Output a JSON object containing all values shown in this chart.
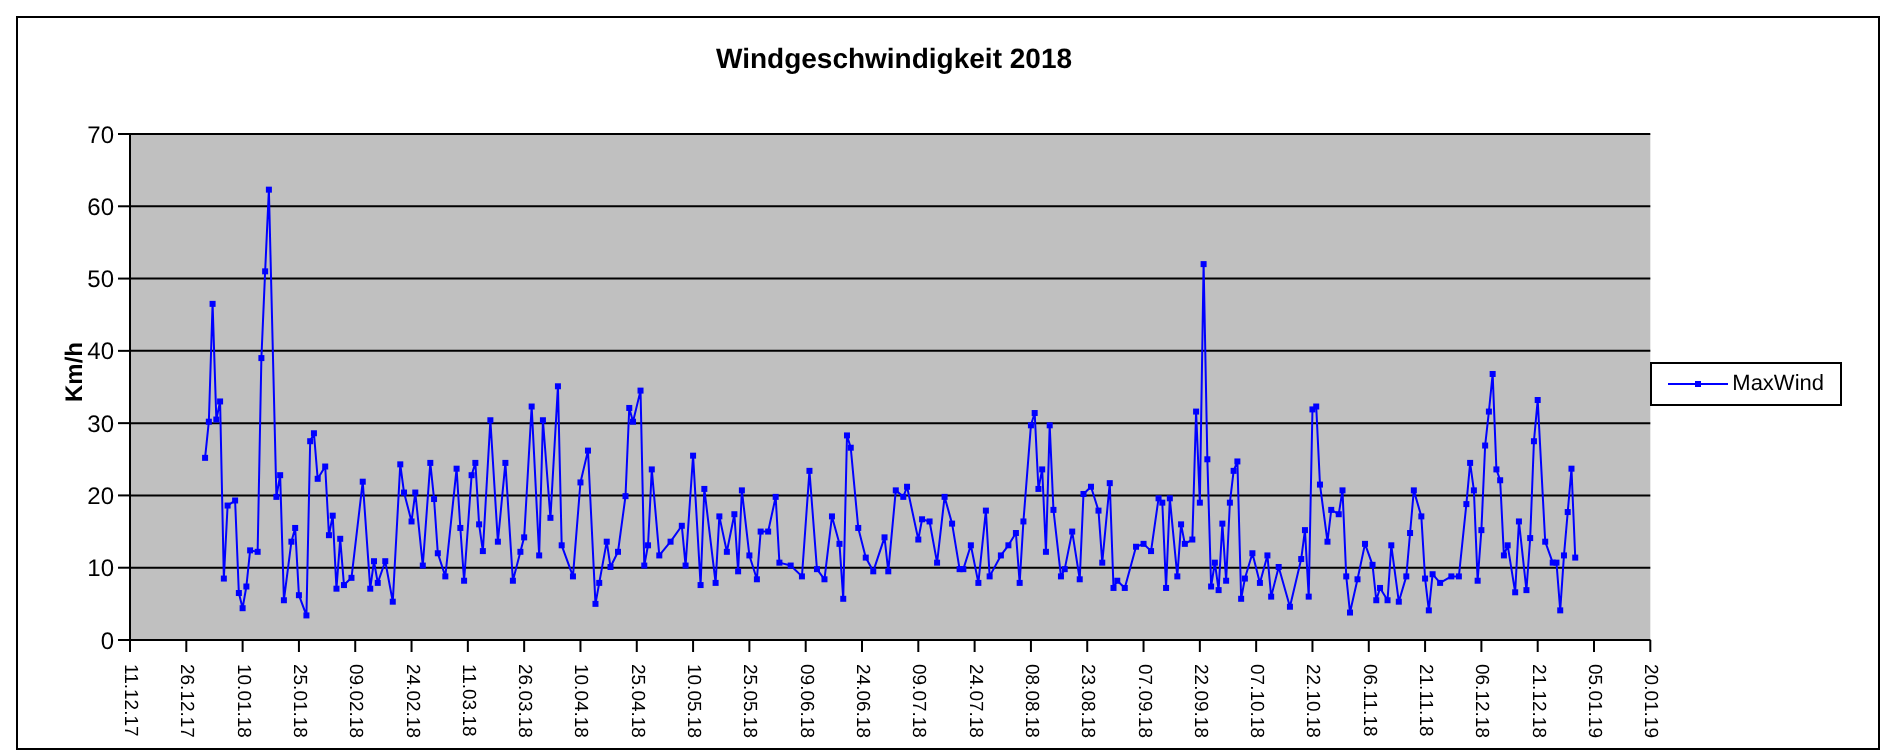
{
  "chart_data": {
    "type": "line",
    "title": "Windgeschwindigkeit 2018",
    "ylabel": "Km/h",
    "x": [
      "2017-12-31",
      "2018-01-01",
      "2018-01-02",
      "2018-01-03",
      "2018-01-04",
      "2018-01-05",
      "2018-01-06",
      "2018-01-08",
      "2018-01-09",
      "2018-01-10",
      "2018-01-11",
      "2018-01-12",
      "2018-01-14",
      "2018-01-15",
      "2018-01-16",
      "2018-01-17",
      "2018-01-19",
      "2018-01-20",
      "2018-01-21",
      "2018-01-23",
      "2018-01-24",
      "2018-01-25",
      "2018-01-27",
      "2018-01-28",
      "2018-01-29",
      "2018-01-30",
      "2018-02-01",
      "2018-02-02",
      "2018-02-03",
      "2018-02-04",
      "2018-02-05",
      "2018-02-06",
      "2018-02-08",
      "2018-02-11",
      "2018-02-13",
      "2018-02-14",
      "2018-02-15",
      "2018-02-17",
      "2018-02-19",
      "2018-02-21",
      "2018-02-22",
      "2018-02-24",
      "2018-02-25",
      "2018-02-27",
      "2018-03-01",
      "2018-03-02",
      "2018-03-03",
      "2018-03-05",
      "2018-03-08",
      "2018-03-09",
      "2018-03-10",
      "2018-03-12",
      "2018-03-13",
      "2018-03-14",
      "2018-03-15",
      "2018-03-17",
      "2018-03-19",
      "2018-03-21",
      "2018-03-23",
      "2018-03-25",
      "2018-03-26",
      "2018-03-28",
      "2018-03-30",
      "2018-03-31",
      "2018-04-02",
      "2018-04-04",
      "2018-04-05",
      "2018-04-08",
      "2018-04-10",
      "2018-04-12",
      "2018-04-14",
      "2018-04-15",
      "2018-04-17",
      "2018-04-18",
      "2018-04-20",
      "2018-04-22",
      "2018-04-23",
      "2018-04-24",
      "2018-04-26",
      "2018-04-27",
      "2018-04-28",
      "2018-04-29",
      "2018-05-01",
      "2018-05-04",
      "2018-05-07",
      "2018-05-08",
      "2018-05-10",
      "2018-05-12",
      "2018-05-13",
      "2018-05-16",
      "2018-05-17",
      "2018-05-19",
      "2018-05-21",
      "2018-05-22",
      "2018-05-23",
      "2018-05-25",
      "2018-05-27",
      "2018-05-28",
      "2018-05-30",
      "2018-06-01",
      "2018-06-02",
      "2018-06-05",
      "2018-06-08",
      "2018-06-10",
      "2018-06-12",
      "2018-06-14",
      "2018-06-16",
      "2018-06-18",
      "2018-06-19",
      "2018-06-20",
      "2018-06-21",
      "2018-06-23",
      "2018-06-25",
      "2018-06-27",
      "2018-06-30",
      "2018-07-01",
      "2018-07-03",
      "2018-07-05",
      "2018-07-06",
      "2018-07-09",
      "2018-07-10",
      "2018-07-12",
      "2018-07-14",
      "2018-07-16",
      "2018-07-18",
      "2018-07-20",
      "2018-07-21",
      "2018-07-23",
      "2018-07-25",
      "2018-07-27",
      "2018-07-28",
      "2018-07-31",
      "2018-08-02",
      "2018-08-04",
      "2018-08-05",
      "2018-08-06",
      "2018-08-08",
      "2018-08-09",
      "2018-08-10",
      "2018-08-11",
      "2018-08-12",
      "2018-08-13",
      "2018-08-14",
      "2018-08-16",
      "2018-08-17",
      "2018-08-19",
      "2018-08-21",
      "2018-08-22",
      "2018-08-24",
      "2018-08-26",
      "2018-08-27",
      "2018-08-29",
      "2018-08-30",
      "2018-08-31",
      "2018-09-02",
      "2018-09-05",
      "2018-09-07",
      "2018-09-09",
      "2018-09-11",
      "2018-09-12",
      "2018-09-13",
      "2018-09-14",
      "2018-09-16",
      "2018-09-17",
      "2018-09-18",
      "2018-09-20",
      "2018-09-21",
      "2018-09-22",
      "2018-09-23",
      "2018-09-24",
      "2018-09-25",
      "2018-09-26",
      "2018-09-27",
      "2018-09-28",
      "2018-09-29",
      "2018-09-30",
      "2018-10-01",
      "2018-10-02",
      "2018-10-03",
      "2018-10-04",
      "2018-10-06",
      "2018-10-08",
      "2018-10-10",
      "2018-10-11",
      "2018-10-13",
      "2018-10-16",
      "2018-10-19",
      "2018-10-20",
      "2018-10-21",
      "2018-10-22",
      "2018-10-23",
      "2018-10-24",
      "2018-10-26",
      "2018-10-27",
      "2018-10-29",
      "2018-10-30",
      "2018-10-31",
      "2018-11-01",
      "2018-11-03",
      "2018-11-05",
      "2018-11-07",
      "2018-11-08",
      "2018-11-09",
      "2018-11-11",
      "2018-11-12",
      "2018-11-14",
      "2018-11-16",
      "2018-11-17",
      "2018-11-18",
      "2018-11-20",
      "2018-11-21",
      "2018-11-22",
      "2018-11-23",
      "2018-11-25",
      "2018-11-28",
      "2018-11-30",
      "2018-12-02",
      "2018-12-03",
      "2018-12-04",
      "2018-12-05",
      "2018-12-06",
      "2018-12-07",
      "2018-12-08",
      "2018-12-09",
      "2018-12-10",
      "2018-12-11",
      "2018-12-12",
      "2018-12-13",
      "2018-12-15",
      "2018-12-16",
      "2018-12-18",
      "2018-12-19",
      "2018-12-20",
      "2018-12-21",
      "2018-12-23",
      "2018-12-25",
      "2018-12-26",
      "2018-12-27",
      "2018-12-28",
      "2018-12-29",
      "2018-12-30",
      "2018-12-31"
    ],
    "series": [
      {
        "name": "MaxWind",
        "color": "#0000ff",
        "values": [
          25.2,
          30.2,
          46.5,
          30.5,
          33,
          8.5,
          18.6,
          19.3,
          6.5,
          4.4,
          7.4,
          12.4,
          12.2,
          39,
          51,
          62.3,
          19.8,
          22.8,
          5.5,
          13.6,
          15.5,
          6.2,
          3.4,
          27.5,
          28.6,
          22.3,
          24,
          14.5,
          17.2,
          7.1,
          14,
          7.6,
          8.6,
          21.9,
          7.1,
          10.9,
          7.9,
          10.9,
          5.3,
          24.3,
          20.4,
          16.4,
          20.4,
          10.3,
          24.5,
          19.5,
          12,
          8.8,
          23.7,
          15.5,
          8.2,
          22.8,
          24.5,
          16,
          12.3,
          30.4,
          13.6,
          24.5,
          8.2,
          12.2,
          14.2,
          32.3,
          11.7,
          30.4,
          16.9,
          35.1,
          13.1,
          8.8,
          21.8,
          26.2,
          5,
          7.9,
          13.6,
          10.1,
          12.2,
          19.9,
          32.1,
          30.2,
          34.5,
          10.3,
          13.1,
          23.6,
          11.7,
          13.6,
          15.8,
          10.3,
          25.5,
          7.6,
          20.9,
          7.9,
          17.1,
          12.2,
          17.4,
          9.5,
          20.7,
          11.7,
          8.4,
          15,
          15,
          19.8,
          10.7,
          10.3,
          8.8,
          23.4,
          9.8,
          8.4,
          17.1,
          13.3,
          5.7,
          28.3,
          26.6,
          15.5,
          11.4,
          9.5,
          14.2,
          9.5,
          20.7,
          19.8,
          21.2,
          13.9,
          16.7,
          16.4,
          10.7,
          19.8,
          16.1,
          9.8,
          9.8,
          13.1,
          7.9,
          17.9,
          8.8,
          11.7,
          13.1,
          14.8,
          7.9,
          16.4,
          29.7,
          31.4,
          20.9,
          23.6,
          12.2,
          29.7,
          18,
          8.8,
          9.8,
          15,
          8.4,
          20.2,
          21.2,
          17.9,
          10.7,
          21.7,
          7.2,
          8.2,
          7.2,
          12.9,
          13.3,
          12.3,
          19.6,
          19,
          7.2,
          19.6,
          8.8,
          16,
          13.3,
          13.9,
          31.6,
          19,
          52,
          25,
          7.4,
          10.7,
          6.9,
          16.1,
          8.2,
          19,
          23.4,
          24.7,
          5.7,
          8.5,
          12,
          7.9,
          11.7,
          6,
          10.1,
          4.6,
          11.2,
          15.2,
          6,
          31.9,
          32.3,
          21.5,
          13.6,
          18,
          17.4,
          20.7,
          8.8,
          3.8,
          8.4,
          13.3,
          10.4,
          5.5,
          7.2,
          5.5,
          13.1,
          5.3,
          8.8,
          14.8,
          20.7,
          17.1,
          8.5,
          4.1,
          9.1,
          7.9,
          8.8,
          8.8,
          18.8,
          24.5,
          20.7,
          8.2,
          15.2,
          26.9,
          31.6,
          36.8,
          23.6,
          22.1,
          11.7,
          13.1,
          6.6,
          16.4,
          6.9,
          14.1,
          27.5,
          33.2,
          13.6,
          10.7,
          10.7,
          4.1,
          11.7,
          17.7,
          23.7,
          11.4
        ]
      }
    ],
    "ylim": [
      0,
      70
    ],
    "yticks": [
      0,
      10,
      20,
      30,
      40,
      50,
      60,
      70
    ],
    "xlim": [
      "2017-12-11",
      "2019-01-20"
    ],
    "xticks": [
      {
        "value": "2017-12-11",
        "label": "11.12.17"
      },
      {
        "value": "2017-12-26",
        "label": "26.12.17"
      },
      {
        "value": "2018-01-10",
        "label": "10.01.18"
      },
      {
        "value": "2018-01-25",
        "label": "25.01.18"
      },
      {
        "value": "2018-02-09",
        "label": "09.02.18"
      },
      {
        "value": "2018-02-24",
        "label": "24.02.18"
      },
      {
        "value": "2018-03-11",
        "label": "11.03.18"
      },
      {
        "value": "2018-03-26",
        "label": "26.03.18"
      },
      {
        "value": "2018-04-10",
        "label": "10.04.18"
      },
      {
        "value": "2018-04-25",
        "label": "25.04.18"
      },
      {
        "value": "2018-05-10",
        "label": "10.05.18"
      },
      {
        "value": "2018-05-25",
        "label": "25.05.18"
      },
      {
        "value": "2018-06-09",
        "label": "09.06.18"
      },
      {
        "value": "2018-06-24",
        "label": "24.06.18"
      },
      {
        "value": "2018-07-09",
        "label": "09.07.18"
      },
      {
        "value": "2018-07-24",
        "label": "24.07.18"
      },
      {
        "value": "2018-08-08",
        "label": "08.08.18"
      },
      {
        "value": "2018-08-23",
        "label": "23.08.18"
      },
      {
        "value": "2018-09-07",
        "label": "07.09.18"
      },
      {
        "value": "2018-09-22",
        "label": "22.09.18"
      },
      {
        "value": "2018-10-07",
        "label": "07.10.18"
      },
      {
        "value": "2018-10-22",
        "label": "22.10.18"
      },
      {
        "value": "2018-11-06",
        "label": "06.11.18"
      },
      {
        "value": "2018-11-21",
        "label": "21.11.18"
      },
      {
        "value": "2018-12-06",
        "label": "06.12.18"
      },
      {
        "value": "2018-12-21",
        "label": "21.12.18"
      },
      {
        "value": "2019-01-05",
        "label": "05.01.19"
      },
      {
        "value": "2019-01-20",
        "label": "20.01.19"
      }
    ],
    "grid": "y",
    "legend": "right",
    "marker": "square",
    "line_style": "solid"
  }
}
